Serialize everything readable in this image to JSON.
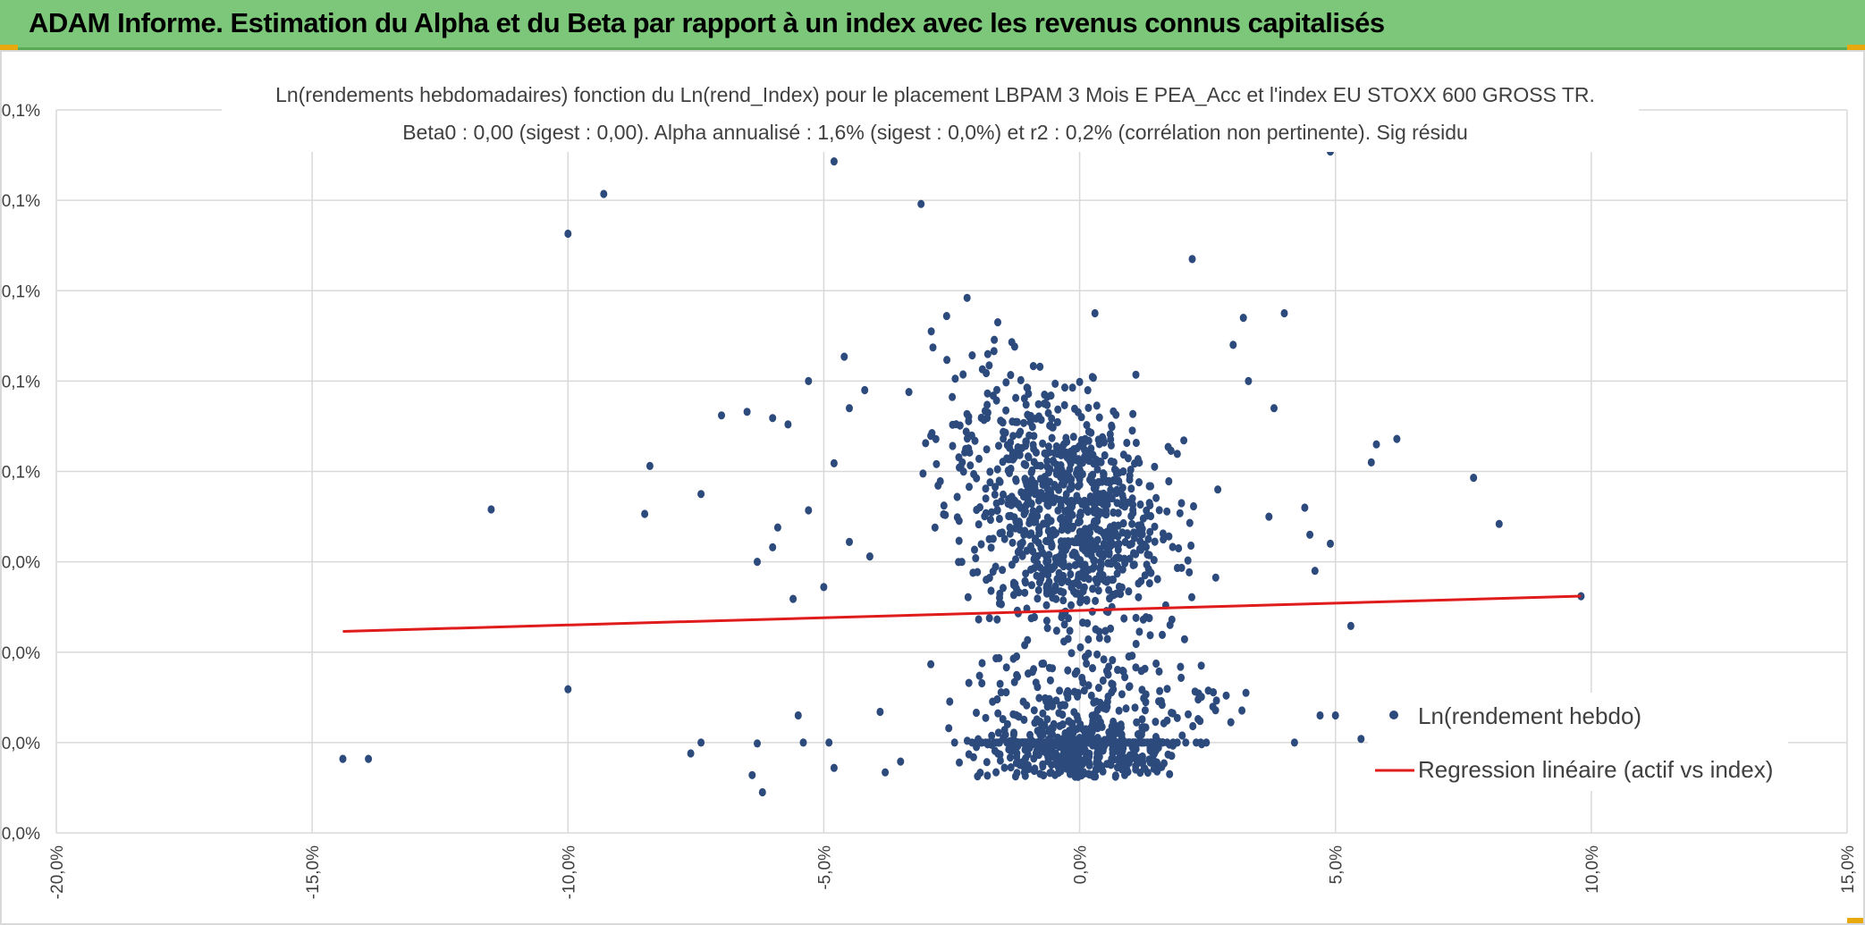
{
  "banner": {
    "title": "ADAM Informe. Estimation du Alpha et du Beta par rapport à un index avec les revenus connus capitalisés"
  },
  "colors": {
    "banner_bg": "#7dc77a",
    "accent_corner": "#e8a90f",
    "points": "#2c4a7c",
    "regression": "#e01b1b",
    "grid": "#d9d9d9"
  },
  "chart_data": {
    "type": "scatter",
    "title": "Ln(rendements hebdomadaires) fonction du Ln(rend_Index) pour le placement LBPAM 3 Mois E PEA_Acc et l'index EU STOXX 600 GROSS TR.",
    "subtitle": "Beta0 : 0,00 (sigest : 0,00). Alpha annualisé : 1,6% (sigest : 0,0%) et r2 : 0,2% (corrélation non pertinente). Sig résidu",
    "xlabel": "",
    "ylabel": "",
    "xlim": [
      -20,
      15
    ],
    "ylim": [
      0,
      8
    ],
    "grid": true,
    "x_ticks": [
      -20,
      -15,
      -10,
      -5,
      0,
      5,
      10,
      15
    ],
    "x_tick_labels": [
      "-20,0%",
      "-15,0%",
      "-10,0%",
      "-5,0%",
      "0,0%",
      "5,0%",
      "10,0%",
      "15,0%"
    ],
    "y_ticks": [
      0,
      1,
      2,
      3,
      4,
      5,
      6,
      7,
      8
    ],
    "y_tick_labels": [
      "0,0%",
      "0,0%",
      "0,0%",
      "0,0%",
      "0,1%",
      "0,1%",
      "0,1%",
      "0,1%",
      "0,1%"
    ],
    "legend_position": "bottom-right",
    "series": [
      {
        "name": "Ln(rendement hebdo)",
        "kind": "scatter",
        "points": [
          [
            -14.4,
            0.82
          ],
          [
            -13.9,
            0.82
          ],
          [
            -11.5,
            3.58
          ],
          [
            -10.0,
            6.63
          ],
          [
            -9.3,
            7.07
          ],
          [
            -10.0,
            1.59
          ],
          [
            -8.4,
            4.06
          ],
          [
            -8.5,
            3.53
          ],
          [
            -7.4,
            3.75
          ],
          [
            -7.6,
            0.88
          ],
          [
            -7.4,
            1.0
          ],
          [
            -7.0,
            4.62
          ],
          [
            -6.5,
            4.66
          ],
          [
            -6.3,
            0.99
          ],
          [
            -6.4,
            0.64
          ],
          [
            -6.2,
            0.45
          ],
          [
            -6.0,
            4.59
          ],
          [
            -5.9,
            3.38
          ],
          [
            -6.3,
            3.0
          ],
          [
            -6.0,
            3.16
          ],
          [
            -5.7,
            4.52
          ],
          [
            -5.6,
            2.59
          ],
          [
            -5.5,
            1.3
          ],
          [
            -5.3,
            3.57
          ],
          [
            -5.4,
            1.0
          ],
          [
            -5.3,
            5.0
          ],
          [
            -5.0,
            2.72
          ],
          [
            -4.9,
            1.0
          ],
          [
            -4.8,
            0.72
          ],
          [
            -4.8,
            4.09
          ],
          [
            -4.8,
            7.43
          ],
          [
            -4.6,
            5.27
          ],
          [
            -4.5,
            4.7
          ],
          [
            -4.5,
            3.22
          ],
          [
            -4.2,
            4.9
          ],
          [
            -4.1,
            3.06
          ],
          [
            -3.9,
            1.34
          ],
          [
            -3.8,
            0.67
          ],
          [
            -3.5,
            0.79
          ],
          [
            -3.1,
            6.96
          ],
          [
            -2.9,
            5.55
          ],
          [
            -2.6,
            5.72
          ],
          [
            -2.2,
            5.92
          ],
          [
            -1.9,
            5.13
          ],
          [
            -1.6,
            5.65
          ],
          [
            -1.2,
            2.43
          ],
          [
            -1.1,
            3.6
          ],
          [
            -0.9,
            4.25
          ],
          [
            0.0,
            4.99
          ],
          [
            0.3,
            5.75
          ],
          [
            1.1,
            5.07
          ],
          [
            2.2,
            6.35
          ],
          [
            2.7,
            3.8
          ],
          [
            3.0,
            5.4
          ],
          [
            3.2,
            5.7
          ],
          [
            3.3,
            5.0
          ],
          [
            3.7,
            3.5
          ],
          [
            3.8,
            4.7
          ],
          [
            4.0,
            5.75
          ],
          [
            4.2,
            1.0
          ],
          [
            4.4,
            3.6
          ],
          [
            4.5,
            3.3
          ],
          [
            4.6,
            2.9
          ],
          [
            4.7,
            1.3
          ],
          [
            4.9,
            3.2
          ],
          [
            4.9,
            7.54
          ],
          [
            5.0,
            1.3
          ],
          [
            5.3,
            2.29
          ],
          [
            5.5,
            1.04
          ],
          [
            5.7,
            4.1
          ],
          [
            5.8,
            4.3
          ],
          [
            6.1,
            1.3
          ],
          [
            6.2,
            4.36
          ],
          [
            6.1,
            0.7
          ],
          [
            7.7,
            3.93
          ],
          [
            8.2,
            3.42
          ],
          [
            9.8,
            2.62
          ]
        ]
      },
      {
        "name": "Regression linéaire (actif vs index)",
        "kind": "line",
        "points": [
          [
            -14.4,
            2.23
          ],
          [
            9.8,
            2.62
          ]
        ]
      }
    ],
    "clusters": [
      {
        "x_center": 0.0,
        "x_spread": 1.5,
        "y_center": 3.4,
        "y_spread": 1.0,
        "count": 800
      },
      {
        "x_center": 0.0,
        "x_spread": 1.6,
        "y_center": 0.95,
        "y_spread": 0.35,
        "count": 650
      },
      {
        "x_center": -1.3,
        "x_spread": 1.3,
        "y_center": 4.3,
        "y_spread": 0.9,
        "count": 160
      },
      {
        "x_center": 0.4,
        "x_spread": 2.0,
        "y_center": 1.6,
        "y_spread": 0.5,
        "count": 140
      }
    ]
  }
}
